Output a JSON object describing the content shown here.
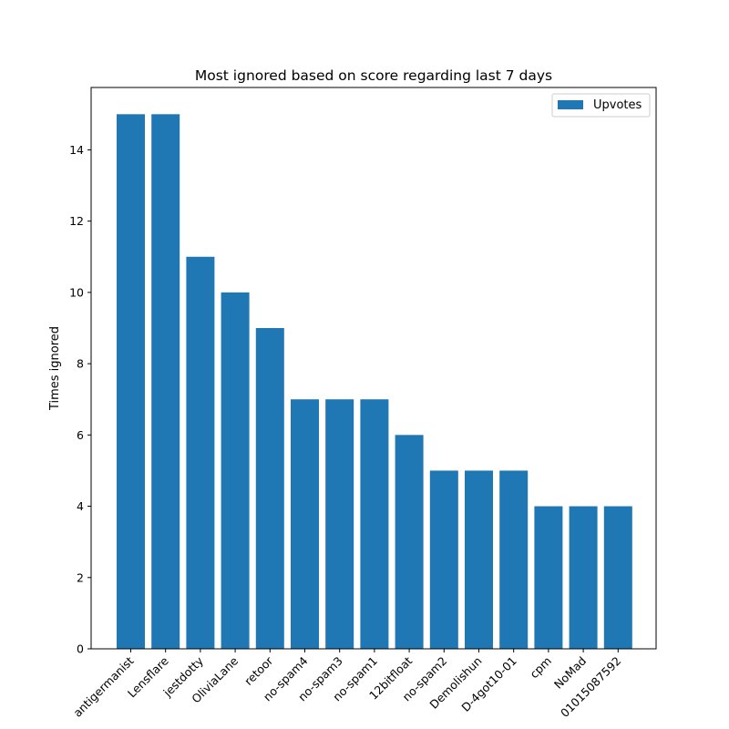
{
  "chart_data": {
    "type": "bar",
    "title": "Most ignored based on score regarding last 7 days",
    "xlabel": "",
    "ylabel": "Times ignored",
    "categories": [
      "antigermanist",
      "Lensflare",
      "jestdotty",
      "OliviaLane",
      "retoor",
      "no-spam4",
      "no-spam3",
      "no-spam1",
      "12bitfloat",
      "no-spam2",
      "Demolishun",
      "D-4got10-01",
      "cpm",
      "NoMad",
      "01015087592"
    ],
    "series": [
      {
        "name": "Upvotes",
        "values": [
          15,
          15,
          11,
          10,
          9,
          7,
          7,
          7,
          6,
          5,
          5,
          5,
          4,
          4,
          4
        ],
        "color": "#1f77b4"
      }
    ],
    "ylim": [
      0,
      15.75
    ],
    "yticks": [
      0,
      2,
      4,
      6,
      8,
      10,
      12,
      14
    ],
    "grid": false,
    "legend_position": "top-right"
  }
}
